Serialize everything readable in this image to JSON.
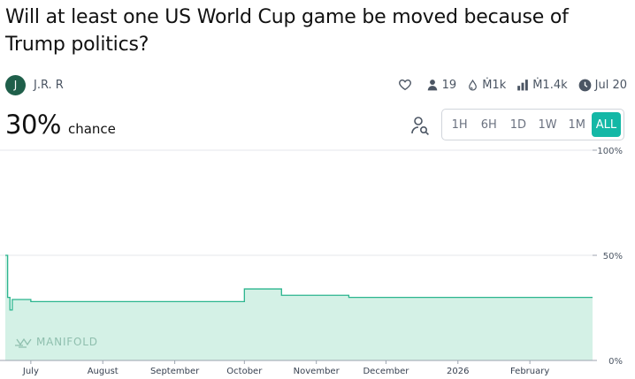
{
  "market": {
    "title": "Will at least one US World Cup game be moved because of Trump politics?",
    "author": {
      "initial": "J",
      "name": "J.R. R"
    },
    "stats": {
      "traders": "19",
      "liquidity": "Ṁ1k",
      "volume": "Ṁ1.4k",
      "close_date": "Jul 20"
    },
    "probability": "30%",
    "probability_label": "chance"
  },
  "time_ranges": [
    {
      "label": "1H",
      "active": false
    },
    {
      "label": "6H",
      "active": false
    },
    {
      "label": "1D",
      "active": false
    },
    {
      "label": "1W",
      "active": false
    },
    {
      "label": "1M",
      "active": false
    },
    {
      "label": "ALL",
      "active": true
    }
  ],
  "colors": {
    "accent": "#14b8a6",
    "line": "#2bb58e",
    "fill": "#d4f1e6"
  },
  "watermark": "MANIFOLD",
  "chart_data": {
    "type": "area",
    "x_tick_labels": [
      "July",
      "August",
      "September",
      "October",
      "November",
      "December",
      "2026",
      "February"
    ],
    "y_tick_labels": [
      "100%",
      "50%",
      "0%"
    ],
    "ylim": [
      0,
      100
    ],
    "x_range": [
      "2025-06-20",
      "2026-02-28"
    ],
    "x": [
      "2025-06-20",
      "2025-06-21",
      "2025-06-22",
      "2025-06-23",
      "2025-06-27",
      "2025-07-01",
      "2025-07-25",
      "2025-09-30",
      "2025-10-01",
      "2025-10-15",
      "2025-10-17",
      "2025-11-15",
      "2026-02-15",
      "2026-02-28"
    ],
    "values": [
      50,
      30,
      24,
      29,
      29,
      28,
      28,
      28,
      34,
      34,
      31,
      30,
      30,
      30
    ]
  }
}
